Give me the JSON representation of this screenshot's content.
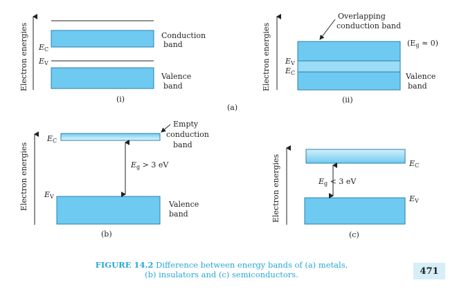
{
  "colors": {
    "band_fill": "#6fcaf2",
    "band_edge": "#2a7fab",
    "band_light_top": "#d4f0fb",
    "caption": "#27a6d9",
    "page_number_bg": "#d6eef8"
  },
  "axis_label": "Electron energies",
  "panel_a": {
    "label": "(a)",
    "metal_i": {
      "sublabel": "(i)",
      "ec_symbol": "E",
      "ec_sub": "C",
      "ev_symbol": "E",
      "ev_sub": "V",
      "conduction_line1": "Conduction",
      "conduction_line2": "band",
      "valence_line1": "Valence",
      "valence_line2": "band"
    },
    "metal_ii": {
      "sublabel": "(ii)",
      "overlap_line1": "Overlapping",
      "overlap_line2": "conduction band",
      "eg_text_pre": "(E",
      "eg_sub": "g",
      "eg_text_post": " ≈ 0)",
      "ev_symbol": "E",
      "ev_sub": "V",
      "ec_symbol": "E",
      "ec_sub": "C",
      "valence_line1": "Valence",
      "valence_line2": "band"
    }
  },
  "panel_b": {
    "label": "(b)",
    "ec_symbol": "E",
    "ec_sub": "C",
    "ev_symbol": "E",
    "ev_sub": "V",
    "empty_line1": "Empty",
    "empty_line2": "conduction",
    "empty_line3": "band",
    "gap_pre": "E",
    "gap_sub": "g",
    "gap_post": " > 3 eV",
    "valence_line1": "Valence",
    "valence_line2": "band"
  },
  "panel_c": {
    "label": "(c)",
    "ec_symbol": "E",
    "ec_sub": "C",
    "ev_symbol": "E",
    "ev_sub": "V",
    "gap_pre": "E",
    "gap_sub": "g",
    "gap_post": " < 3 eV"
  },
  "caption": {
    "figure_label": "FIGURE 14.2",
    "line1": " Difference between energy bands of (a) metals,",
    "line2": "(b) insulators and (c) semiconductors."
  },
  "page_number": "471"
}
